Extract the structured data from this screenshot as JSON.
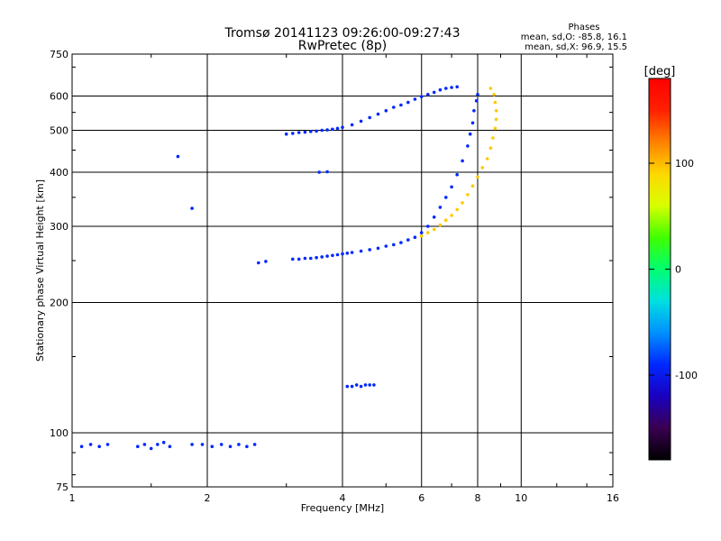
{
  "chart_data": {
    "type": "scatter",
    "title": "Tromsø 20141123 09:26:00-09:27:43",
    "subtitle": "RwPretec (8p)",
    "xlabel": "Frequency [MHz]",
    "ylabel": "Stationary phase Virtual Height [km]",
    "x_scale": "log2",
    "y_scale": "log",
    "xlim": [
      1,
      16
    ],
    "ylim": [
      75,
      750
    ],
    "x_ticks": [
      1,
      2,
      4,
      6,
      8,
      10,
      16
    ],
    "x_tick_labels": [
      "1",
      "2",
      "4",
      "6",
      "8",
      "10",
      "16"
    ],
    "y_ticks": [
      75,
      100,
      200,
      300,
      400,
      500,
      600,
      750
    ],
    "y_tick_labels": [
      "75",
      "100",
      "200",
      "300",
      "400",
      "500",
      "600",
      "750"
    ],
    "grid": true,
    "stats": {
      "heading": "Phases",
      "line_o": "mean, sd,O: -85.8, 16.1",
      "line_x": "mean, sd,X:  96.9, 15.5"
    },
    "colorbar": {
      "label": "[deg]",
      "range": [
        -180,
        180
      ],
      "ticks": [
        100,
        0,
        -100
      ],
      "tick_labels": [
        "100",
        "0",
        "-100"
      ],
      "colormap": [
        "#000000",
        "#3a0050",
        "#1a00c0",
        "#0028ff",
        "#0090ff",
        "#00e0e0",
        "#00ff70",
        "#40ff00",
        "#d8ff00",
        "#ffd800",
        "#ff8000",
        "#ff2000",
        "#ff0000"
      ]
    },
    "series": [
      {
        "mode": "O",
        "phase_deg": -90,
        "points": [
          [
            1.05,
            93
          ],
          [
            1.1,
            94
          ],
          [
            1.15,
            93
          ],
          [
            1.2,
            94
          ],
          [
            1.4,
            93
          ],
          [
            1.45,
            94
          ],
          [
            1.5,
            92
          ],
          [
            1.55,
            94
          ],
          [
            1.6,
            95
          ],
          [
            1.65,
            93
          ],
          [
            1.85,
            94
          ],
          [
            1.95,
            94
          ],
          [
            2.05,
            93
          ],
          [
            2.15,
            94
          ],
          [
            2.25,
            93
          ],
          [
            2.35,
            94
          ],
          [
            2.45,
            93
          ],
          [
            2.55,
            94
          ],
          [
            2.6,
            247
          ],
          [
            2.7,
            249
          ],
          [
            3.1,
            252
          ],
          [
            3.2,
            252
          ],
          [
            3.3,
            253
          ],
          [
            3.4,
            253
          ],
          [
            3.5,
            254
          ],
          [
            3.6,
            255
          ],
          [
            3.7,
            256
          ],
          [
            3.8,
            257
          ],
          [
            3.9,
            258
          ],
          [
            4.0,
            259
          ],
          [
            4.1,
            260
          ],
          [
            4.2,
            261
          ],
          [
            4.4,
            263
          ],
          [
            4.6,
            265
          ],
          [
            4.8,
            267
          ],
          [
            5.0,
            270
          ],
          [
            5.2,
            272
          ],
          [
            5.4,
            275
          ],
          [
            5.6,
            279
          ],
          [
            5.8,
            283
          ],
          [
            6.0,
            290
          ],
          [
            6.2,
            300
          ],
          [
            6.4,
            315
          ],
          [
            6.6,
            332
          ],
          [
            6.8,
            350
          ],
          [
            7.0,
            370
          ],
          [
            7.2,
            395
          ],
          [
            7.4,
            425
          ],
          [
            7.6,
            460
          ],
          [
            7.7,
            490
          ],
          [
            7.8,
            520
          ],
          [
            7.85,
            555
          ],
          [
            7.95,
            585
          ],
          [
            8.0,
            605
          ],
          [
            3.0,
            490
          ],
          [
            3.1,
            492
          ],
          [
            3.2,
            494
          ],
          [
            3.3,
            495
          ],
          [
            3.4,
            497
          ],
          [
            3.5,
            498
          ],
          [
            3.6,
            500
          ],
          [
            3.7,
            501
          ],
          [
            3.8,
            503
          ],
          [
            3.9,
            505
          ],
          [
            4.0,
            508
          ],
          [
            4.2,
            515
          ],
          [
            4.4,
            525
          ],
          [
            4.6,
            535
          ],
          [
            4.8,
            545
          ],
          [
            5.0,
            555
          ],
          [
            5.2,
            565
          ],
          [
            5.4,
            572
          ],
          [
            5.6,
            580
          ],
          [
            5.8,
            590
          ],
          [
            6.0,
            598
          ],
          [
            6.2,
            605
          ],
          [
            6.4,
            612
          ],
          [
            6.6,
            620
          ],
          [
            6.8,
            625
          ],
          [
            7.0,
            628
          ],
          [
            7.2,
            630
          ],
          [
            4.1,
            128
          ],
          [
            4.2,
            128
          ],
          [
            4.3,
            129
          ],
          [
            4.4,
            128
          ],
          [
            4.5,
            129
          ],
          [
            4.6,
            129
          ],
          [
            4.7,
            129
          ],
          [
            3.55,
            400
          ],
          [
            3.7,
            401
          ],
          [
            1.72,
            435
          ],
          [
            1.85,
            330
          ]
        ]
      },
      {
        "mode": "X",
        "phase_deg": 95,
        "points": [
          [
            6.0,
            285
          ],
          [
            6.2,
            290
          ],
          [
            6.4,
            295
          ],
          [
            6.6,
            302
          ],
          [
            6.8,
            310
          ],
          [
            7.0,
            318
          ],
          [
            7.2,
            328
          ],
          [
            7.4,
            340
          ],
          [
            7.6,
            355
          ],
          [
            7.8,
            372
          ],
          [
            8.0,
            390
          ],
          [
            8.2,
            410
          ],
          [
            8.4,
            430
          ],
          [
            8.55,
            455
          ],
          [
            8.65,
            480
          ],
          [
            8.75,
            505
          ],
          [
            8.8,
            530
          ],
          [
            8.8,
            555
          ],
          [
            8.75,
            580
          ],
          [
            8.7,
            605
          ],
          [
            8.55,
            625
          ]
        ]
      }
    ]
  }
}
